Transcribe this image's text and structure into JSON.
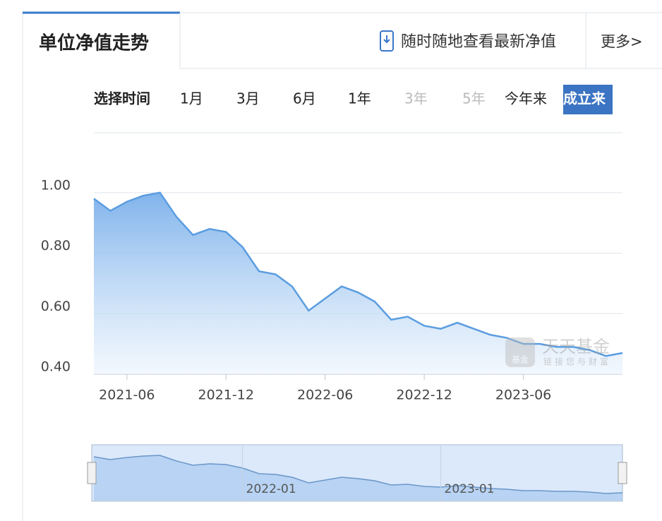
{
  "header": {
    "title": "单位净值走势",
    "promo": "随时随地查看最新净值",
    "more": "更多>"
  },
  "time_range": {
    "label": "选择时间",
    "options": [
      "1月",
      "3月",
      "6月",
      "1年",
      "3年",
      "5年",
      "今年来",
      "成立来"
    ],
    "selected": 7,
    "disabled": [
      4,
      5
    ]
  },
  "chart_data": {
    "type": "area",
    "x": [
      "2021-04",
      "2021-05",
      "2021-06",
      "2021-07",
      "2021-08",
      "2021-09",
      "2021-10",
      "2021-11",
      "2021-12",
      "2022-01",
      "2022-02",
      "2022-03",
      "2022-04",
      "2022-05",
      "2022-06",
      "2022-07",
      "2022-08",
      "2022-09",
      "2022-10",
      "2022-11",
      "2022-12",
      "2023-01",
      "2023-02",
      "2023-03",
      "2023-04",
      "2023-05",
      "2023-06",
      "2023-07",
      "2023-08",
      "2023-09",
      "2023-10",
      "2023-11",
      "2023-12"
    ],
    "values": [
      0.98,
      0.94,
      0.97,
      0.99,
      1.0,
      0.92,
      0.86,
      0.88,
      0.87,
      0.82,
      0.74,
      0.73,
      0.69,
      0.61,
      0.65,
      0.69,
      0.67,
      0.64,
      0.58,
      0.59,
      0.56,
      0.55,
      0.57,
      0.55,
      0.53,
      0.52,
      0.5,
      0.5,
      0.49,
      0.49,
      0.48,
      0.46,
      0.47
    ],
    "color": "#5b9de0",
    "ylim": [
      0.4,
      1.1
    ],
    "yticks": [
      {
        "value": 0.4,
        "label": "0.40"
      },
      {
        "value": 0.6,
        "label": "0.60"
      },
      {
        "value": 0.8,
        "label": "0.80"
      },
      {
        "value": 1.0,
        "label": "1.00"
      }
    ],
    "xticks": [
      "2021-06",
      "2021-12",
      "2022-06",
      "2022-12",
      "2023-06"
    ],
    "grid": true
  },
  "navigator": {
    "labels": [
      "2022-01",
      "2023-01"
    ]
  },
  "watermark": {
    "logo": "基金",
    "brand": "天天基金",
    "slogan": "链接您与财富"
  }
}
